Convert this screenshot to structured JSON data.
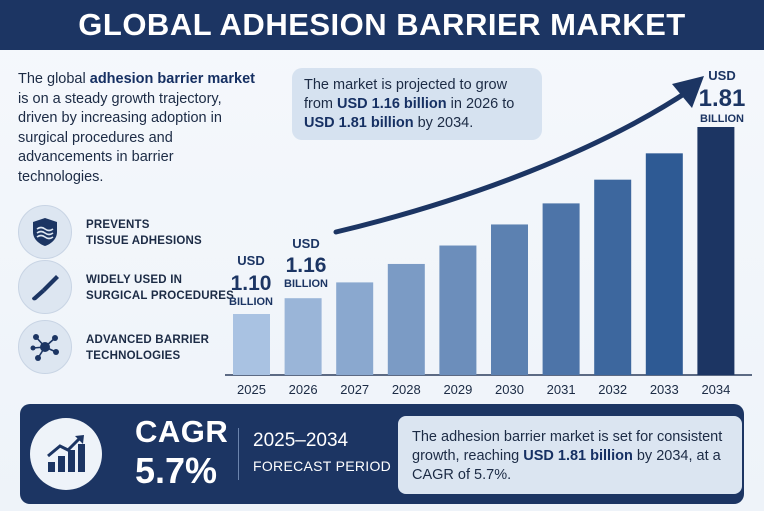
{
  "header": {
    "title": "GLOBAL ADHESION BARRIER MARKET"
  },
  "intro": {
    "before": "The global ",
    "bold": "adhesion barrier market",
    "after": " is on a steady growth trajectory, driven by increasing adoption in surgical procedures and advancements in barrier technologies."
  },
  "features": [
    {
      "icon": "shield-icon",
      "line1": "PREVENTS",
      "line2": "TISSUE ADHESIONS"
    },
    {
      "icon": "scalpel-icon",
      "line1": "WIDELY USED IN",
      "line2": "SURGICAL PROCEDURES"
    },
    {
      "icon": "network-icon",
      "line1": "ADVANCED BARRIER",
      "line2": "TECHNOLOGIES"
    }
  ],
  "callout": {
    "t1": "The market is projected to grow from ",
    "b1": "USD 1.16 billion",
    "t2": " in 2026 to ",
    "b2": "USD 1.81 billion",
    "t3": " by 2034."
  },
  "chart_data": {
    "type": "bar",
    "categories": [
      "2025",
      "2026",
      "2027",
      "2028",
      "2029",
      "2030",
      "2031",
      "2032",
      "2033",
      "2034"
    ],
    "values": [
      1.1,
      1.16,
      1.22,
      1.29,
      1.36,
      1.44,
      1.52,
      1.61,
      1.71,
      1.81
    ],
    "value_labels": [
      {
        "index": 0,
        "prefix": "USD",
        "value": "1.10",
        "unit": "BILLION"
      },
      {
        "index": 1,
        "prefix": "USD",
        "value": "1.16",
        "unit": "BILLION"
      },
      {
        "index": 9,
        "prefix": "USD",
        "value": "1.81",
        "unit": "BILLION"
      }
    ],
    "trend_arrow": true,
    "title": "",
    "xlabel": "",
    "ylabel": "",
    "grid": false,
    "colors": {
      "light": "#a9c2e2",
      "dark": "#2e5a94",
      "highlight": "#1c3563",
      "arrow": "#1c3563"
    }
  },
  "footer": {
    "cagr_label": "CAGR",
    "cagr_value": "5.7%",
    "period_years": "2025–2034",
    "period_label": "FORECAST PERIOD",
    "summary": {
      "t1": "The adhesion barrier market is set for consistent growth, reaching ",
      "b1": "USD 1.81 billion",
      "t2": " by 2034, at a CAGR of 5.7%."
    }
  }
}
